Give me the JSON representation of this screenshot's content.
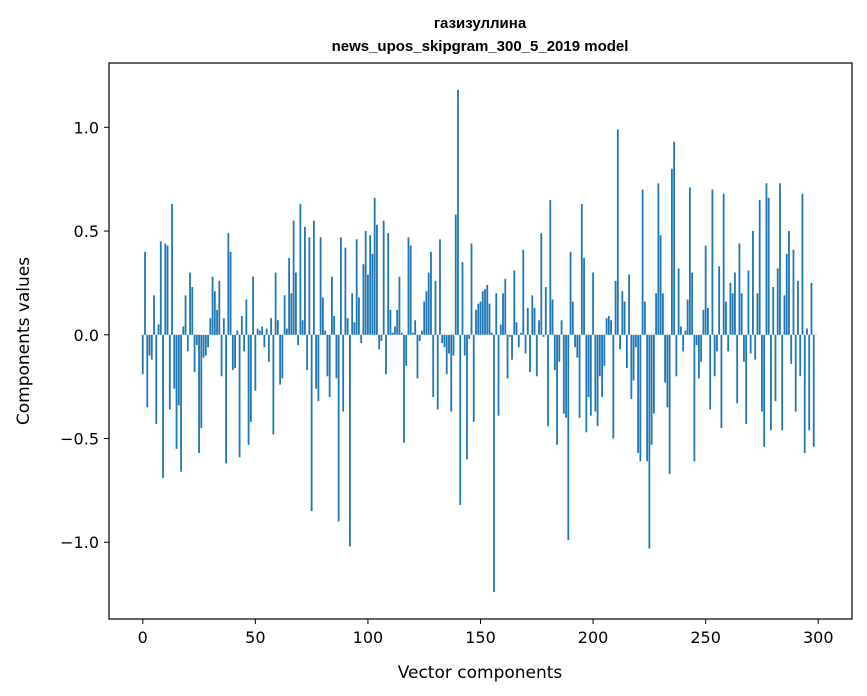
{
  "chart_data": {
    "type": "bar",
    "title": "газизуллина",
    "subtitle": "news_upos_skipgram_300_5_2019 model",
    "xlabel": "Vector components",
    "ylabel": "Components values",
    "xlim": [
      -15,
      315
    ],
    "ylim": [
      -1.37,
      1.31
    ],
    "xticks": [
      0,
      50,
      100,
      150,
      200,
      250,
      300
    ],
    "yticks": [
      -1.0,
      -0.5,
      0.0,
      0.5,
      1.0
    ],
    "ytick_labels": [
      "−1.0",
      "−0.5",
      "0.0",
      "0.5",
      "1.0"
    ],
    "grid": false,
    "bar_color": "#1f77b4",
    "series": [
      {
        "values": [
          -0.19,
          0.4,
          -0.35,
          -0.1,
          -0.12,
          0.19,
          -0.43,
          0.05,
          0.45,
          -0.69,
          0.44,
          0.43,
          -0.36,
          0.63,
          -0.26,
          -0.55,
          -0.34,
          -0.66,
          0.04,
          0.19,
          -0.08,
          0.3,
          0.23,
          -0.18,
          -0.05,
          -0.57,
          -0.45,
          -0.11,
          -0.1,
          -0.06,
          0.08,
          0.28,
          0.21,
          0.12,
          0.26,
          -0.2,
          0.08,
          -0.62,
          0.49,
          0.4,
          -0.17,
          -0.16,
          0.02,
          -0.59,
          0.09,
          -0.08,
          0.17,
          -0.53,
          -0.42,
          0.28,
          -0.27,
          0.03,
          0.02,
          0.04,
          -0.06,
          0.03,
          -0.13,
          0.08,
          -0.48,
          0.3,
          0.07,
          -0.24,
          -0.21,
          0.19,
          0.03,
          0.37,
          0.2,
          0.55,
          0.3,
          -0.05,
          0.63,
          0.07,
          0.52,
          -0.17,
          0.47,
          -0.85,
          0.55,
          -0.26,
          -0.32,
          0.47,
          0.18,
          0.02,
          -0.2,
          -0.3,
          0.28,
          0.09,
          -0.21,
          -0.9,
          0.47,
          -0.37,
          0.42,
          0.08,
          -1.02,
          0.2,
          0.06,
          0.46,
          0.18,
          -0.04,
          0.34,
          0.5,
          0.29,
          0.48,
          0.39,
          0.66,
          0.53,
          -0.07,
          -0.03,
          0.55,
          -0.19,
          0.49,
          0.12,
          0.01,
          0.04,
          0.12,
          0.28,
          0.01,
          -0.52,
          -0.15,
          0.47,
          0.43,
          0.01,
          0.07,
          -0.21,
          -0.03,
          0.02,
          0.16,
          0.21,
          0.3,
          0.4,
          -0.3,
          0.26,
          -0.36,
          0.46,
          -0.04,
          -0.06,
          -0.19,
          -0.09,
          -0.37,
          -0.1,
          0.58,
          1.18,
          -0.82,
          0.35,
          -0.1,
          -0.6,
          -0.02,
          0.44,
          -0.42,
          0.12,
          0.15,
          0.16,
          0.21,
          0.22,
          0.24,
          0.15,
          0.01,
          -1.24,
          0.2,
          -0.39,
          0.05,
          0.2,
          0.27,
          -0.21,
          -0.01,
          -0.12,
          0.31,
          0.06,
          -0.06,
          0.01,
          0.41,
          -0.09,
          0.13,
          -0.18,
          0.19,
          0.13,
          -0.2,
          0.07,
          0.49,
          -0.01,
          0.23,
          -0.44,
          0.65,
          0.17,
          -0.17,
          -0.53,
          -0.13,
          0.07,
          -0.38,
          -0.4,
          -0.99,
          0.4,
          0.16,
          -0.06,
          -0.11,
          -0.4,
          0.63,
          0.37,
          -0.47,
          -0.3,
          -0.39,
          0.3,
          -0.37,
          -0.44,
          -0.2,
          -0.3,
          -0.15,
          0.08,
          0.09,
          0.07,
          -0.5,
          0.26,
          0.99,
          -0.07,
          0.21,
          0.16,
          -0.16,
          0.29,
          -0.31,
          -0.22,
          -0.06,
          -0.57,
          -0.61,
          0.7,
          0.16,
          -0.61,
          -1.03,
          -0.53,
          -0.38,
          0.2,
          0.73,
          0.48,
          0.2,
          -0.23,
          -0.35,
          -0.67,
          0.8,
          0.93,
          -0.2,
          0.32,
          0.04,
          -0.08,
          0.02,
          0.17,
          0.71,
          0.3,
          -0.61,
          -0.05,
          -0.21,
          -0.13,
          0.12,
          0.43,
          0.13,
          -0.36,
          0.7,
          -0.2,
          -0.08,
          0.33,
          -0.45,
          0.68,
          0.16,
          -0.08,
          0.25,
          0.2,
          0.3,
          -0.33,
          0.44,
          0.2,
          -0.13,
          -0.43,
          0.31,
          -0.09,
          0.5,
          -0.12,
          0.2,
          0.65,
          -0.37,
          -0.54,
          0.73,
          0.66,
          -0.46,
          0.23,
          -0.32,
          0.32,
          0.73,
          -0.46,
          0.19,
          0.39,
          0.5,
          -0.14,
          0.41,
          -0.37,
          0.26,
          -0.2,
          0.68,
          -0.57,
          0.03,
          -0.46,
          0.25,
          -0.54,
          0.0
        ]
      }
    ]
  }
}
